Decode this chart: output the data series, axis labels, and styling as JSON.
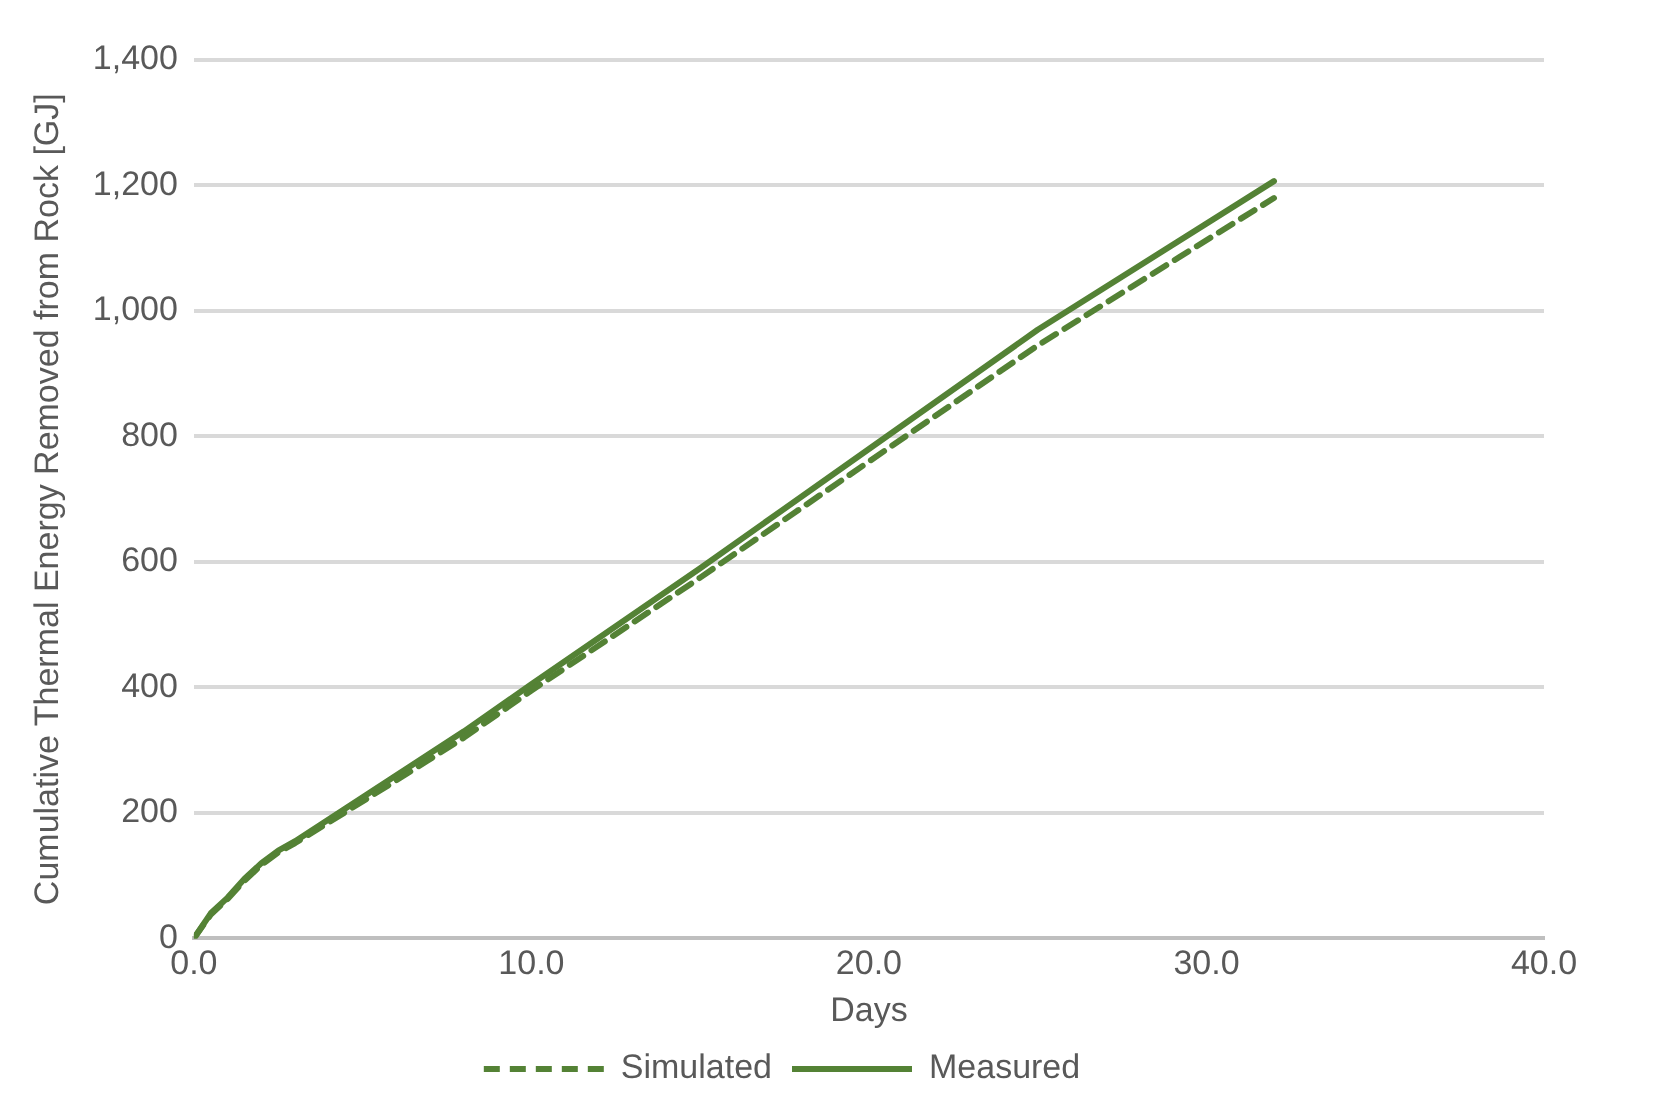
{
  "chart_data": {
    "type": "line",
    "xlabel": "Days",
    "ylabel": "Cumulative Thermal Energy Removed from Rock [GJ]",
    "xlim": [
      0,
      40
    ],
    "xticks": [
      {
        "value": 0,
        "label": "0.0"
      },
      {
        "value": 10,
        "label": "10.0"
      },
      {
        "value": 20,
        "label": "20.0"
      },
      {
        "value": 30,
        "label": "30.0"
      },
      {
        "value": 40,
        "label": "40.0"
      }
    ],
    "ylim": [
      0,
      1400
    ],
    "yticks": [
      {
        "value": 0,
        "label": "0"
      },
      {
        "value": 200,
        "label": "200"
      },
      {
        "value": 400,
        "label": "400"
      },
      {
        "value": 600,
        "label": "600"
      },
      {
        "value": 800,
        "label": "800"
      },
      {
        "value": 1000,
        "label": "1,000"
      },
      {
        "value": 1200,
        "label": "1,200"
      },
      {
        "value": 1400,
        "label": "1,400"
      }
    ],
    "grid": "y",
    "legend": "bottom",
    "marker": "none",
    "series": [
      {
        "name": "Simulated",
        "color": "#548235",
        "line_style": "dashed",
        "x": [
          0,
          0.5,
          1,
          1.5,
          2,
          2.5,
          3,
          4,
          6,
          8,
          10,
          15,
          20,
          25,
          32
        ],
        "values": [
          0,
          38,
          63,
          92,
          117,
          137,
          152,
          185,
          252,
          320,
          395,
          575,
          760,
          945,
          1180
        ]
      },
      {
        "name": "Measured",
        "color": "#548235",
        "line_style": "solid",
        "x": [
          0,
          0.5,
          1,
          1.5,
          2,
          2.5,
          3,
          4,
          6,
          8,
          10,
          15,
          20,
          25,
          32
        ],
        "values": [
          0,
          40,
          65,
          95,
          120,
          140,
          155,
          190,
          260,
          330,
          405,
          590,
          780,
          970,
          1207
        ]
      }
    ]
  }
}
